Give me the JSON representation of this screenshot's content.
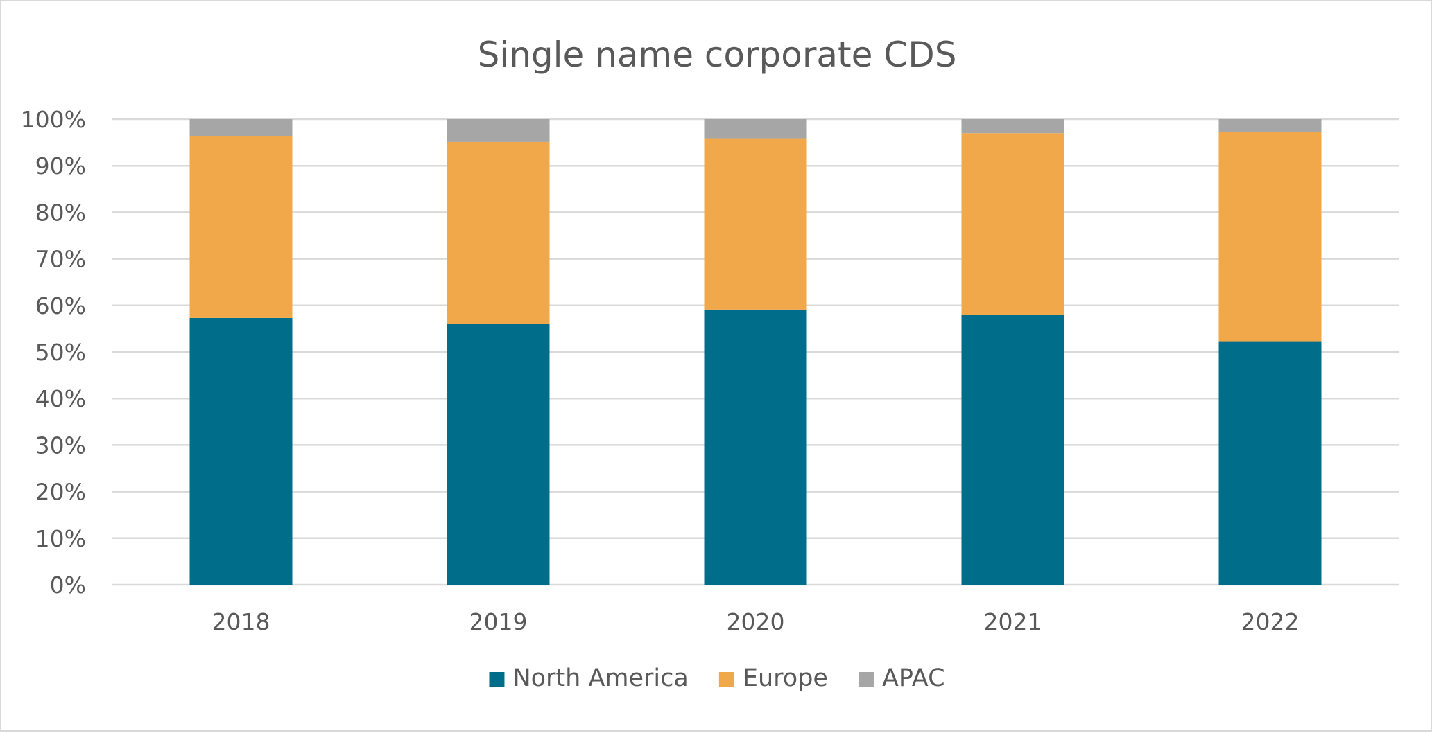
{
  "chart_data": {
    "type": "bar",
    "stacked": true,
    "percent_stacked": true,
    "title": "Single name corporate CDS",
    "xlabel": "",
    "ylabel": "",
    "categories": [
      "2018",
      "2019",
      "2020",
      "2021",
      "2022"
    ],
    "series": [
      {
        "name": "North America",
        "color": "#006E8A",
        "values": [
          57.3,
          56.1,
          59.1,
          58.0,
          52.3
        ]
      },
      {
        "name": "Europe",
        "color": "#F0A84A",
        "values": [
          39.1,
          39.0,
          36.8,
          39.0,
          45.0
        ]
      },
      {
        "name": "APAC",
        "color": "#A6A6A6",
        "values": [
          3.6,
          4.9,
          4.1,
          3.0,
          2.7
        ]
      }
    ],
    "ylim": [
      0,
      100
    ],
    "yticks": [
      "0%",
      "10%",
      "20%",
      "30%",
      "40%",
      "50%",
      "60%",
      "70%",
      "80%",
      "90%",
      "100%"
    ],
    "grid": true,
    "legend_position": "bottom"
  }
}
